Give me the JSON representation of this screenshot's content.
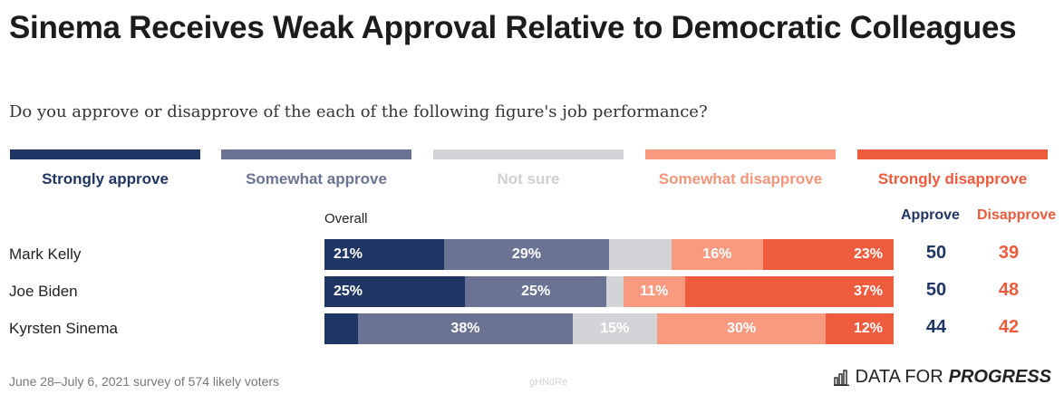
{
  "header": {
    "title": "Sinema Receives Weak Approval Relative to Democratic Colleagues",
    "subtitle": "Do you approve or disapprove of the each of the following figure's job performance?"
  },
  "legend": [
    {
      "label": "Strongly approve",
      "color": "#1f3564",
      "text_color": "#1f3564"
    },
    {
      "label": "Somewhat approve",
      "color": "#6b7394",
      "text_color": "#6b7394"
    },
    {
      "label": "Not sure",
      "color": "#d3d4d8",
      "text_color": "#cfd0d4"
    },
    {
      "label": "Somewhat disapprove",
      "color": "#f79a80",
      "text_color": "#f5957a"
    },
    {
      "label": "Strongly disapprove",
      "color": "#ef5b3d",
      "text_color": "#ee5a3b"
    }
  ],
  "columns": {
    "overall": "Overall",
    "approve": "Approve",
    "disapprove": "Disapprove"
  },
  "chart_data": {
    "type": "bar",
    "stacked": "horizontal-100%",
    "categories": [
      "Mark Kelly",
      "Joe Biden",
      "Kyrsten Sinema"
    ],
    "series": [
      {
        "name": "Strongly approve",
        "values": [
          21,
          25,
          6
        ]
      },
      {
        "name": "Somewhat approve",
        "values": [
          29,
          25,
          38
        ]
      },
      {
        "name": "Not sure",
        "values": [
          11,
          3,
          15
        ]
      },
      {
        "name": "Somewhat disapprove",
        "values": [
          16,
          11,
          30
        ]
      },
      {
        "name": "Strongly disapprove",
        "values": [
          23,
          37,
          12
        ]
      }
    ],
    "labels": [
      [
        "21%",
        "29%",
        "",
        "16%",
        "23%"
      ],
      [
        "25%",
        "25%",
        "",
        "11%",
        "37%"
      ],
      [
        "",
        "38%",
        "15%",
        "30%",
        "12%"
      ]
    ],
    "approve_totals": [
      50,
      50,
      44
    ],
    "disapprove_totals": [
      39,
      48,
      42
    ]
  },
  "footer": {
    "note": "June 28–July 6, 2021 survey of 574 likely voters",
    "watermark": "gHNdRe",
    "brand_light": "DATA FOR",
    "brand_bold": "PROGRESS",
    "brand_icon": "bar-chart-icon"
  }
}
